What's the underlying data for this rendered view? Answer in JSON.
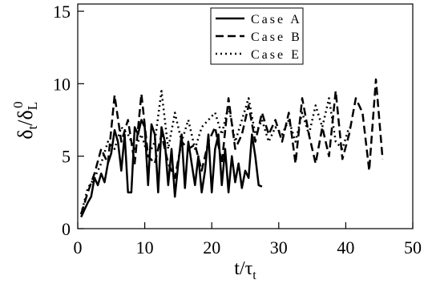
{
  "chart_data": {
    "type": "line",
    "y_label": [
      "δ",
      "t",
      "/δ",
      "L",
      "0"
    ],
    "x_label": [
      "t/τ",
      "t"
    ],
    "xlim": [
      0,
      50
    ],
    "xticks": [
      0,
      10,
      20,
      30,
      40,
      50
    ],
    "ylim": [
      0,
      15.5
    ],
    "yticks": [
      0,
      5,
      10,
      15
    ],
    "legend": "top",
    "series": [
      {
        "name": "Case A",
        "color": "#000000",
        "dash": "solid",
        "x": [
          0.5,
          1,
          1.5,
          2,
          2.5,
          3,
          3.5,
          4,
          4.5,
          5,
          5.5,
          6,
          6.5,
          7,
          7.5,
          8,
          8.5,
          9,
          9.5,
          10,
          10.5,
          11,
          11.5,
          12,
          12.5,
          13,
          13.5,
          14,
          14.5,
          15,
          15.5,
          16,
          16.5,
          17,
          17.5,
          18,
          18.5,
          19,
          19.5,
          20,
          20.5,
          21,
          21.5,
          22,
          22.5,
          23,
          23.5,
          24,
          24.5,
          25,
          25.5,
          26,
          26.5,
          27,
          27.5
        ],
        "values": [
          0.8,
          1.3,
          1.8,
          2.2,
          3.5,
          3.0,
          3.8,
          3.2,
          4.5,
          5.2,
          6.8,
          6.0,
          4.0,
          6.5,
          2.5,
          2.5,
          7.0,
          6.5,
          7.5,
          7.0,
          3.0,
          7.2,
          6.5,
          2.5,
          7.0,
          6.0,
          3.0,
          5.5,
          2.2,
          4.5,
          6.5,
          2.8,
          6.0,
          4.5,
          3.0,
          5.0,
          2.5,
          4.0,
          6.5,
          2.5,
          5.5,
          6.5,
          3.0,
          5.5,
          2.5,
          5.0,
          3.2,
          4.5,
          2.8,
          4.0,
          3.5,
          6.5,
          5.0,
          3.0,
          2.9
        ]
      },
      {
        "name": "Case B",
        "color": "#000000",
        "dash": "dashed",
        "x": [
          0.5,
          1.5,
          2.5,
          3.5,
          4.5,
          5.5,
          6.5,
          7.5,
          8.5,
          9.5,
          10.5,
          11.5,
          12.5,
          13.5,
          14.5,
          15.5,
          16.5,
          17.5,
          18.5,
          19.5,
          20.5,
          21.5,
          22.5,
          23.5,
          24.5,
          25.5,
          26.5,
          27.5,
          28.5,
          29.5,
          30.5,
          31.5,
          32.5,
          33.5,
          34.5,
          35.5,
          36.5,
          37.5,
          38.5,
          39.5,
          40.5,
          41.5,
          42.5,
          43.5,
          44.5,
          45.5
        ],
        "values": [
          1,
          2.5,
          3.8,
          5.5,
          4.5,
          9.2,
          6.0,
          7.5,
          4.5,
          9.3,
          5.0,
          4.5,
          6.5,
          4.5,
          3.5,
          6.0,
          5.5,
          5.8,
          4.0,
          6.0,
          7.0,
          4.5,
          9.0,
          5.5,
          6.5,
          8.5,
          6.0,
          8.0,
          6.5,
          7.5,
          6.0,
          8.0,
          4.5,
          9.0,
          6.5,
          4.5,
          7.0,
          5.0,
          9.5,
          4.8,
          6.5,
          9.0,
          8.0,
          4.0,
          10.3,
          4.8
        ]
      },
      {
        "name": "Case E",
        "color": "#000000",
        "dash": "dotted",
        "x": [
          0.5,
          1.5,
          2.5,
          3.5,
          4.5,
          5.5,
          6.5,
          7.5,
          8.5,
          9.5,
          10.5,
          11.5,
          12.5,
          13.5,
          14.5,
          15.5,
          16.5,
          17.5,
          18.5,
          19.5,
          20.5,
          21.5,
          22.5,
          23.5,
          24.5,
          25.5,
          26.5,
          27.5,
          28.5,
          29.5,
          30.5,
          31.5,
          32.5,
          33.5,
          34.5,
          35.5,
          36.5,
          37.5,
          38.5,
          39.5,
          40.5
        ],
        "values": [
          1,
          2.8,
          3.5,
          4.5,
          6.0,
          5.5,
          7.0,
          6.5,
          5.5,
          6.5,
          5.0,
          6.0,
          9.5,
          5.5,
          8.0,
          6.0,
          7.5,
          5.5,
          7.0,
          7.5,
          8.0,
          6.5,
          8.5,
          6.0,
          7.5,
          9.0,
          6.5,
          7.5,
          6.0,
          7.0,
          6.5,
          7.5,
          6.0,
          8.0,
          6.5,
          8.5,
          7.0,
          9.0,
          6.0,
          5.5,
          7.0
        ]
      }
    ]
  }
}
